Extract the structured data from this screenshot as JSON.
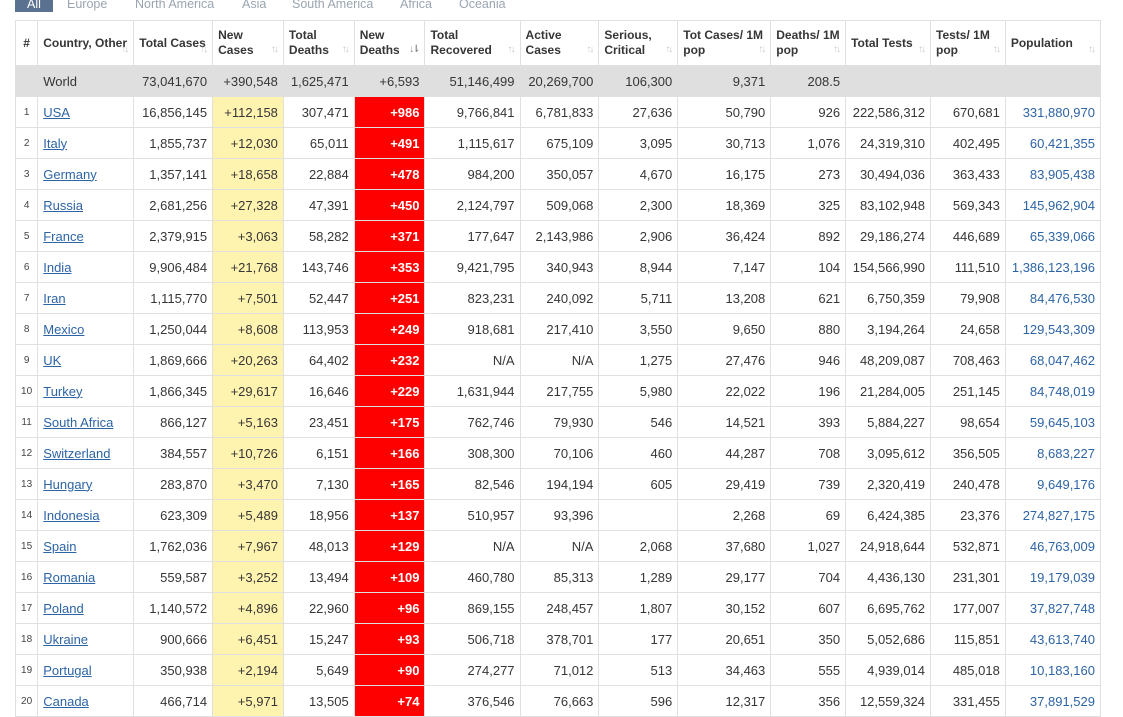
{
  "tabs": [
    "All",
    "Europe",
    "North America",
    "Asia",
    "South America",
    "Africa",
    "Oceania"
  ],
  "colors": {
    "tab_active_bg": "#5a7190",
    "new_cases_bg": "#fff3b0",
    "new_deaths_bg": "#ff0000",
    "link": "#2d64a6",
    "world_row_bg": "#dfdfdf"
  },
  "headers": [
    "#",
    "Country, Other",
    "Total Cases",
    "New Cases",
    "Total Deaths",
    "New Deaths",
    "Total Recovered",
    "Active Cases",
    "Serious, Critical",
    "Tot Cases/ 1M pop",
    "Deaths/ 1M pop",
    "Total Tests",
    "Tests/ 1M pop",
    "Population"
  ],
  "sort_icon": "sort-arrows-icon",
  "world": [
    "",
    "World",
    "73,041,670",
    "+390,548",
    "1,625,471",
    "+6,593",
    "51,146,499",
    "20,269,700",
    "106,300",
    "9,371",
    "208.5",
    "",
    "",
    ""
  ],
  "rows": [
    [
      "1",
      "USA",
      "16,856,145",
      "+112,158",
      "307,471",
      "+986",
      "9,766,841",
      "6,781,833",
      "27,636",
      "50,790",
      "926",
      "222,586,312",
      "670,681",
      "331,880,970"
    ],
    [
      "2",
      "Italy",
      "1,855,737",
      "+12,030",
      "65,011",
      "+491",
      "1,115,617",
      "675,109",
      "3,095",
      "30,713",
      "1,076",
      "24,319,310",
      "402,495",
      "60,421,355"
    ],
    [
      "3",
      "Germany",
      "1,357,141",
      "+18,658",
      "22,884",
      "+478",
      "984,200",
      "350,057",
      "4,670",
      "16,175",
      "273",
      "30,494,036",
      "363,433",
      "83,905,438"
    ],
    [
      "4",
      "Russia",
      "2,681,256",
      "+27,328",
      "47,391",
      "+450",
      "2,124,797",
      "509,068",
      "2,300",
      "18,369",
      "325",
      "83,102,948",
      "569,343",
      "145,962,904"
    ],
    [
      "5",
      "France",
      "2,379,915",
      "+3,063",
      "58,282",
      "+371",
      "177,647",
      "2,143,986",
      "2,906",
      "36,424",
      "892",
      "29,186,274",
      "446,689",
      "65,339,066"
    ],
    [
      "6",
      "India",
      "9,906,484",
      "+21,768",
      "143,746",
      "+353",
      "9,421,795",
      "340,943",
      "8,944",
      "7,147",
      "104",
      "154,566,990",
      "111,510",
      "1,386,123,196"
    ],
    [
      "7",
      "Iran",
      "1,115,770",
      "+7,501",
      "52,447",
      "+251",
      "823,231",
      "240,092",
      "5,711",
      "13,208",
      "621",
      "6,750,359",
      "79,908",
      "84,476,530"
    ],
    [
      "8",
      "Mexico",
      "1,250,044",
      "+8,608",
      "113,953",
      "+249",
      "918,681",
      "217,410",
      "3,550",
      "9,650",
      "880",
      "3,194,264",
      "24,658",
      "129,543,309"
    ],
    [
      "9",
      "UK",
      "1,869,666",
      "+20,263",
      "64,402",
      "+232",
      "N/A",
      "N/A",
      "1,275",
      "27,476",
      "946",
      "48,209,087",
      "708,463",
      "68,047,462"
    ],
    [
      "10",
      "Turkey",
      "1,866,345",
      "+29,617",
      "16,646",
      "+229",
      "1,631,944",
      "217,755",
      "5,980",
      "22,022",
      "196",
      "21,284,005",
      "251,145",
      "84,748,019"
    ],
    [
      "11",
      "South Africa",
      "866,127",
      "+5,163",
      "23,451",
      "+175",
      "762,746",
      "79,930",
      "546",
      "14,521",
      "393",
      "5,884,227",
      "98,654",
      "59,645,103"
    ],
    [
      "12",
      "Switzerland",
      "384,557",
      "+10,726",
      "6,151",
      "+166",
      "308,300",
      "70,106",
      "460",
      "44,287",
      "708",
      "3,095,612",
      "356,505",
      "8,683,227"
    ],
    [
      "13",
      "Hungary",
      "283,870",
      "+3,470",
      "7,130",
      "+165",
      "82,546",
      "194,194",
      "605",
      "29,419",
      "739",
      "2,320,419",
      "240,478",
      "9,649,176"
    ],
    [
      "14",
      "Indonesia",
      "623,309",
      "+5,489",
      "18,956",
      "+137",
      "510,957",
      "93,396",
      "",
      "2,268",
      "69",
      "6,424,385",
      "23,376",
      "274,827,175"
    ],
    [
      "15",
      "Spain",
      "1,762,036",
      "+7,967",
      "48,013",
      "+129",
      "N/A",
      "N/A",
      "2,068",
      "37,680",
      "1,027",
      "24,918,644",
      "532,871",
      "46,763,009"
    ],
    [
      "16",
      "Romania",
      "559,587",
      "+3,252",
      "13,494",
      "+109",
      "460,780",
      "85,313",
      "1,289",
      "29,177",
      "704",
      "4,436,130",
      "231,301",
      "19,179,039"
    ],
    [
      "17",
      "Poland",
      "1,140,572",
      "+4,896",
      "22,960",
      "+96",
      "869,155",
      "248,457",
      "1,807",
      "30,152",
      "607",
      "6,695,762",
      "177,007",
      "37,827,748"
    ],
    [
      "18",
      "Ukraine",
      "900,666",
      "+6,451",
      "15,247",
      "+93",
      "506,718",
      "378,701",
      "177",
      "20,651",
      "350",
      "5,052,686",
      "115,851",
      "43,613,740"
    ],
    [
      "19",
      "Portugal",
      "350,938",
      "+2,194",
      "5,649",
      "+90",
      "274,277",
      "71,012",
      "513",
      "34,463",
      "555",
      "4,939,014",
      "485,018",
      "10,183,160"
    ],
    [
      "20",
      "Canada",
      "466,714",
      "+5,971",
      "13,505",
      "+74",
      "376,546",
      "76,663",
      "596",
      "12,317",
      "356",
      "12,559,324",
      "331,455",
      "37,891,529"
    ]
  ]
}
